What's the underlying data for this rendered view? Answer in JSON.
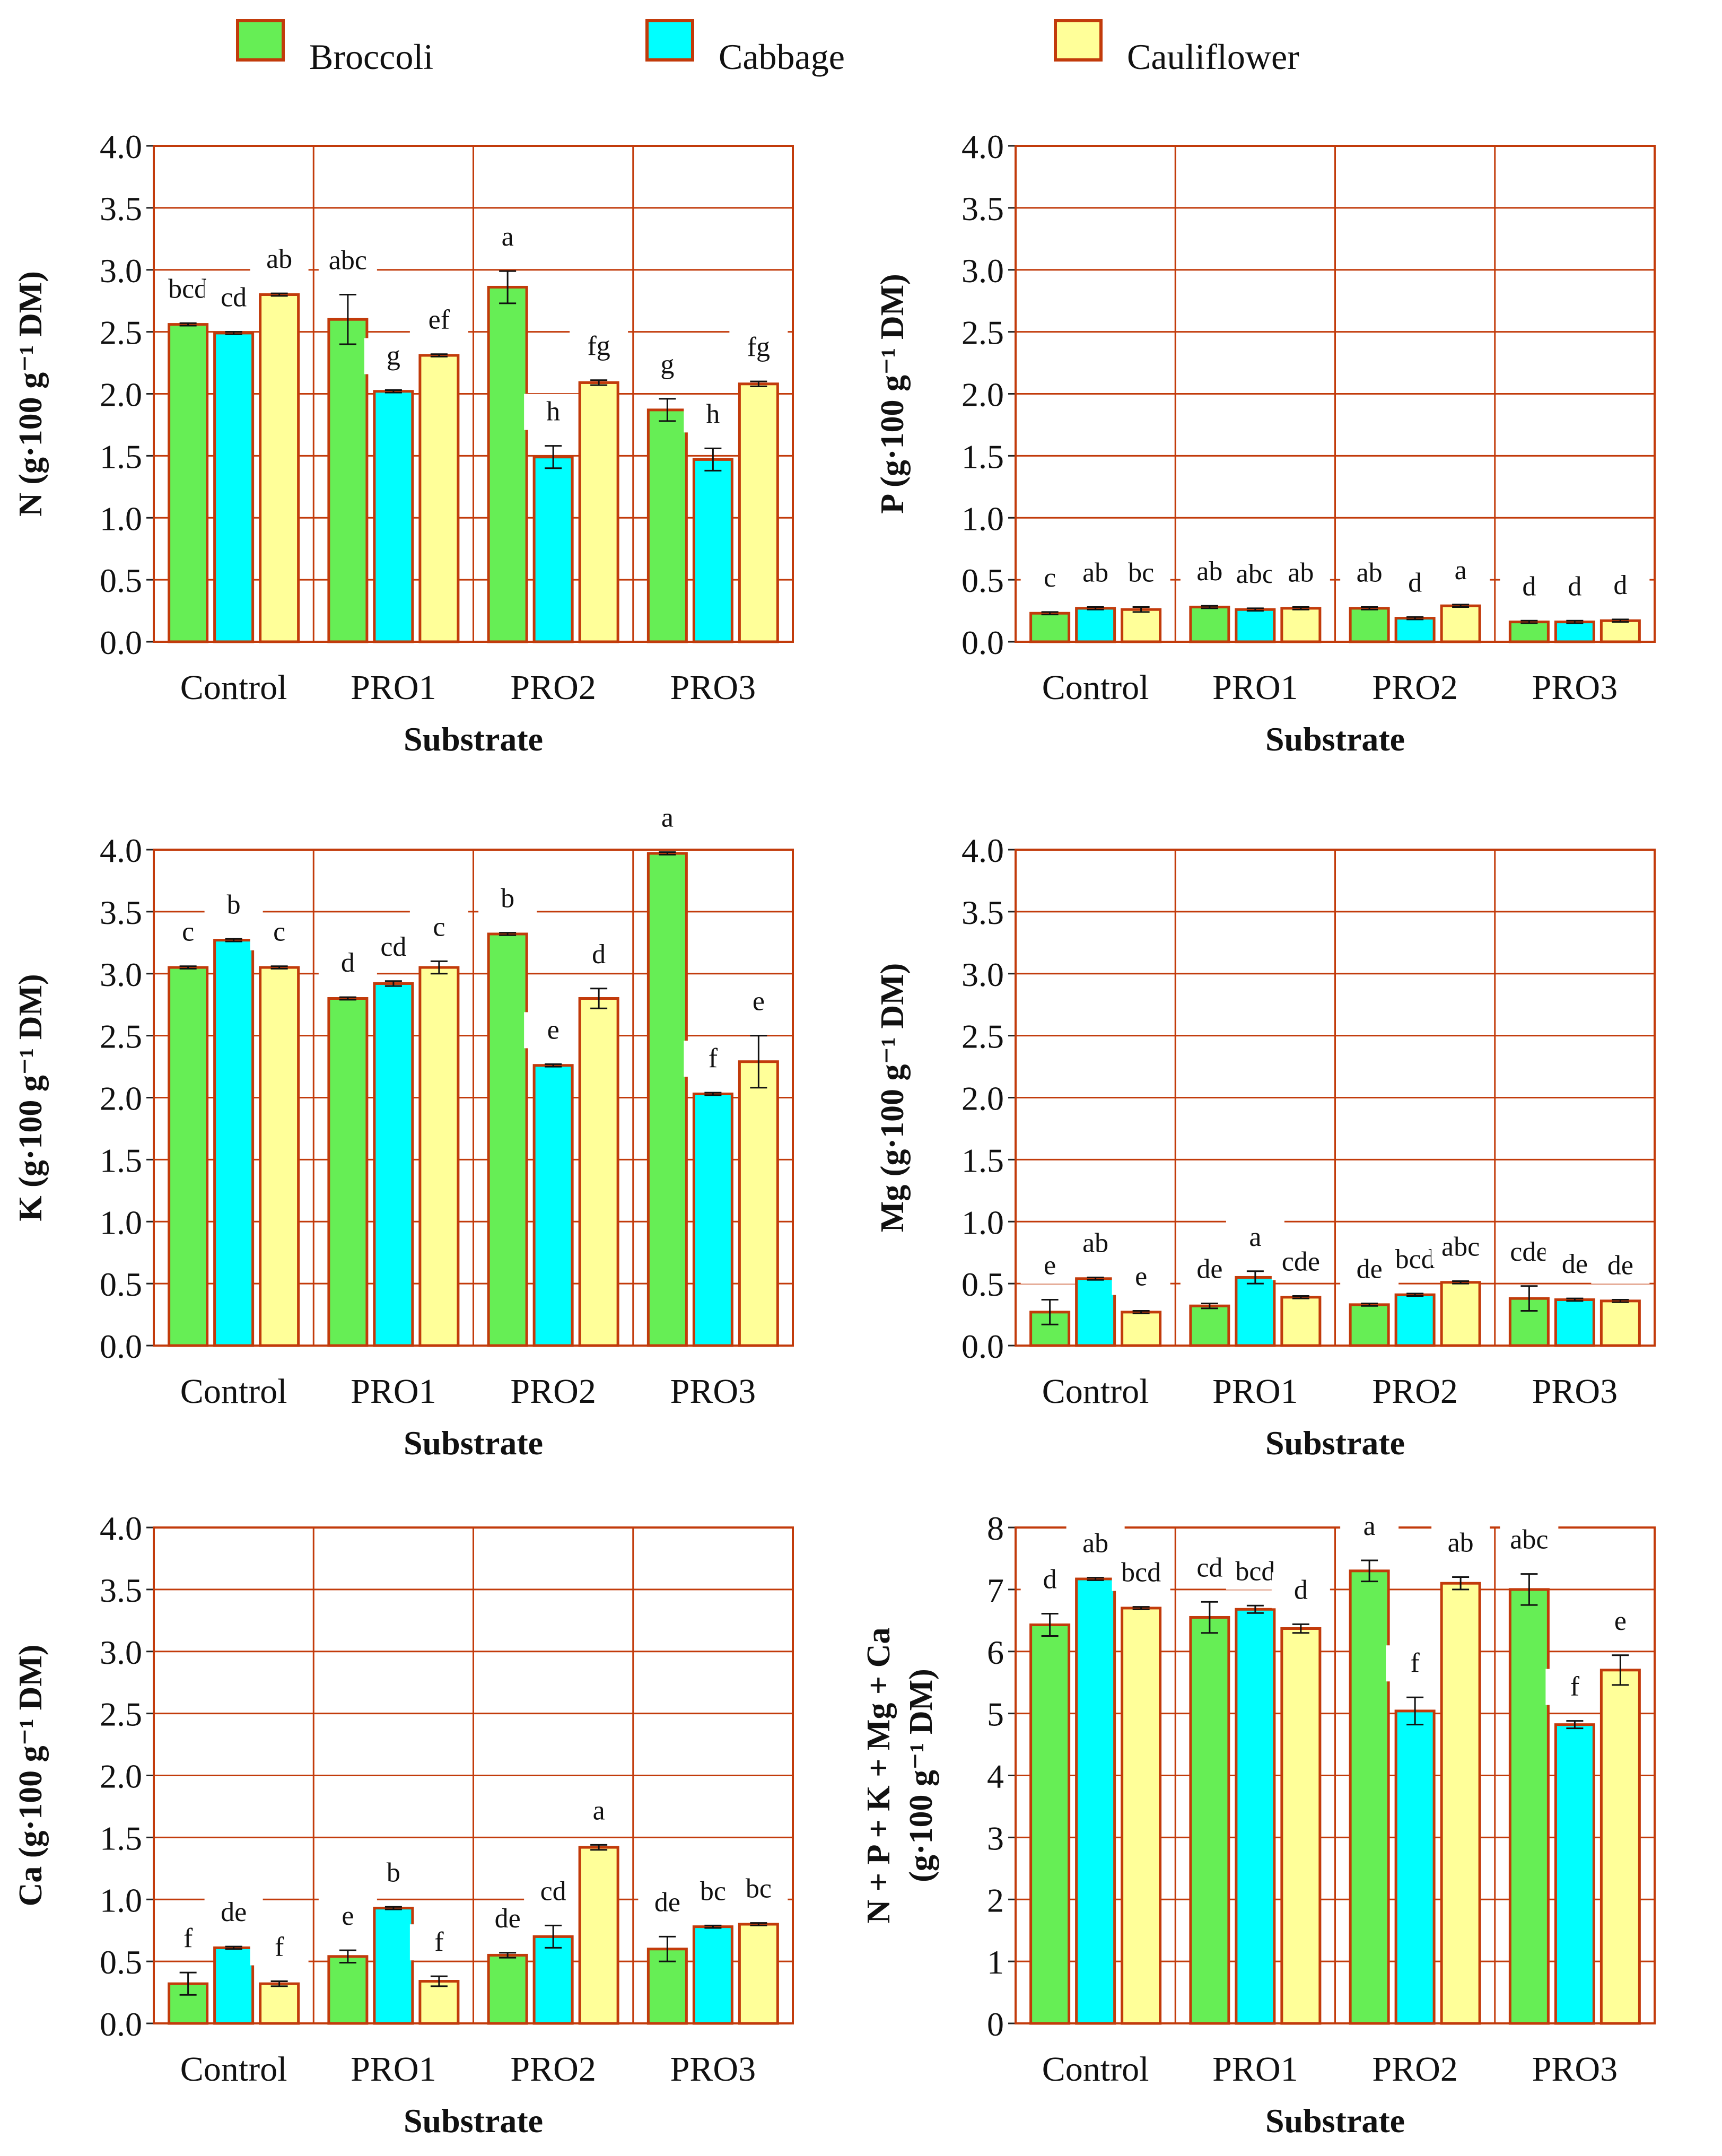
{
  "legend": [
    {
      "name": "Broccoli",
      "color": "#66ee55"
    },
    {
      "name": "Cabbage",
      "color": "#00ffff"
    },
    {
      "name": "Cauliflower",
      "color": "#ffff99"
    }
  ],
  "colors": {
    "grid": "#c23b0b",
    "bar_border": "#c23b0b",
    "text": "#111111"
  },
  "chart_data": [
    {
      "type": "bar",
      "title": "",
      "xlabel": "Substrate",
      "ylabel": "N (g·100 g⁻¹ DM)",
      "ylabel_lines": [
        "N (g·100 g⁻¹ DM)"
      ],
      "ylim": [
        0,
        4
      ],
      "yticks": [
        "0.0",
        "0.5",
        "1.0",
        "1.5",
        "2.0",
        "2.5",
        "3.0",
        "3.5",
        "4.0"
      ],
      "categories": [
        "Control",
        "PRO1",
        "PRO2",
        "PRO3"
      ],
      "series": [
        {
          "name": "Broccoli",
          "values": [
            2.56,
            2.6,
            2.86,
            1.87
          ],
          "errors": [
            0.01,
            0.2,
            0.13,
            0.09
          ],
          "letters": [
            "bcd",
            "abc",
            "a",
            "g"
          ]
        },
        {
          "name": "Cabbage",
          "values": [
            2.49,
            2.02,
            1.49,
            1.47
          ],
          "errors": [
            0.01,
            0.01,
            0.09,
            0.09
          ],
          "letters": [
            "cd",
            "g",
            "h",
            "h"
          ]
        },
        {
          "name": "Cauliflower",
          "values": [
            2.8,
            2.31,
            2.09,
            2.08
          ],
          "errors": [
            0.01,
            0.01,
            0.02,
            0.02
          ],
          "letters": [
            "ab",
            "ef",
            "fg",
            "fg"
          ]
        }
      ]
    },
    {
      "type": "bar",
      "title": "",
      "xlabel": "Substrate",
      "ylabel": "P (g·100 g⁻¹ DM)",
      "ylabel_lines": [
        "P (g·100 g⁻¹ DM)"
      ],
      "ylim": [
        0,
        4
      ],
      "yticks": [
        "0.0",
        "0.5",
        "1.0",
        "1.5",
        "2.0",
        "2.5",
        "3.0",
        "3.5",
        "4.0"
      ],
      "categories": [
        "Control",
        "PRO1",
        "PRO2",
        "PRO3"
      ],
      "series": [
        {
          "name": "Broccoli",
          "values": [
            0.23,
            0.28,
            0.27,
            0.16
          ],
          "errors": [
            0.01,
            0.01,
            0.01,
            0.01
          ],
          "letters": [
            "c",
            "ab",
            "ab",
            "d"
          ]
        },
        {
          "name": "Cabbage",
          "values": [
            0.27,
            0.26,
            0.19,
            0.16
          ],
          "errors": [
            0.01,
            0.01,
            0.01,
            0.01
          ],
          "letters": [
            "ab",
            "abc",
            "d",
            "d"
          ]
        },
        {
          "name": "Cauliflower",
          "values": [
            0.26,
            0.27,
            0.29,
            0.17
          ],
          "errors": [
            0.02,
            0.01,
            0.01,
            0.01
          ],
          "letters": [
            "bc",
            "ab",
            "a",
            "d"
          ]
        }
      ]
    },
    {
      "type": "bar",
      "title": "",
      "xlabel": "Substrate",
      "ylabel": "K (g·100 g⁻¹ DM)",
      "ylabel_lines": [
        "K (g·100 g⁻¹ DM)"
      ],
      "ylim": [
        0,
        4
      ],
      "yticks": [
        "0.0",
        "0.5",
        "1.0",
        "1.5",
        "2.0",
        "2.5",
        "3.0",
        "3.5",
        "4.0"
      ],
      "categories": [
        "Control",
        "PRO1",
        "PRO2",
        "PRO3"
      ],
      "series": [
        {
          "name": "Broccoli",
          "values": [
            3.05,
            2.8,
            3.32,
            3.97
          ],
          "errors": [
            0.01,
            0.01,
            0.01,
            0.01
          ],
          "letters": [
            "c",
            "d",
            "b",
            "a"
          ]
        },
        {
          "name": "Cabbage",
          "values": [
            3.27,
            2.92,
            2.26,
            2.03
          ],
          "errors": [
            0.01,
            0.02,
            0.01,
            0.01
          ],
          "letters": [
            "b",
            "cd",
            "e",
            "f"
          ]
        },
        {
          "name": "Cauliflower",
          "values": [
            3.05,
            3.05,
            2.8,
            2.29
          ],
          "errors": [
            0.01,
            0.05,
            0.08,
            0.21
          ],
          "letters": [
            "c",
            "c",
            "d",
            "e"
          ]
        }
      ]
    },
    {
      "type": "bar",
      "title": "",
      "xlabel": "Substrate",
      "ylabel": "Mg (g·100 g⁻¹ DM)",
      "ylabel_lines": [
        "Mg (g·100 g⁻¹ DM)"
      ],
      "ylim": [
        0,
        4
      ],
      "yticks": [
        "0.0",
        "0.5",
        "1.0",
        "1.5",
        "2.0",
        "2.5",
        "3.0",
        "3.5",
        "4.0"
      ],
      "categories": [
        "Control",
        "PRO1",
        "PRO2",
        "PRO3"
      ],
      "series": [
        {
          "name": "Broccoli",
          "values": [
            0.27,
            0.32,
            0.33,
            0.38
          ],
          "errors": [
            0.1,
            0.02,
            0.01,
            0.1
          ],
          "letters": [
            "e",
            "de",
            "de",
            "cde"
          ]
        },
        {
          "name": "Cabbage",
          "values": [
            0.54,
            0.55,
            0.41,
            0.37
          ],
          "errors": [
            0.01,
            0.05,
            0.01,
            0.01
          ],
          "letters": [
            "ab",
            "a",
            "bcd",
            "de"
          ]
        },
        {
          "name": "Cauliflower",
          "values": [
            0.27,
            0.39,
            0.51,
            0.36
          ],
          "errors": [
            0.01,
            0.01,
            0.01,
            0.01
          ],
          "letters": [
            "e",
            "cde",
            "abc",
            "de"
          ]
        }
      ]
    },
    {
      "type": "bar",
      "title": "",
      "xlabel": "Substrate",
      "ylabel": "Ca (g·100 g⁻¹ DM)",
      "ylabel_lines": [
        "Ca (g·100 g⁻¹ DM)"
      ],
      "ylim": [
        0,
        4
      ],
      "yticks": [
        "0.0",
        "0.5",
        "1.0",
        "1.5",
        "2.0",
        "2.5",
        "3.0",
        "3.5",
        "4.0"
      ],
      "categories": [
        "Control",
        "PRO1",
        "PRO2",
        "PRO3"
      ],
      "series": [
        {
          "name": "Broccoli",
          "values": [
            0.32,
            0.54,
            0.55,
            0.6
          ],
          "errors": [
            0.09,
            0.05,
            0.02,
            0.1
          ],
          "letters": [
            "f",
            "e",
            "de",
            "de"
          ]
        },
        {
          "name": "Cabbage",
          "values": [
            0.61,
            0.93,
            0.7,
            0.78
          ],
          "errors": [
            0.01,
            0.01,
            0.09,
            0.01
          ],
          "letters": [
            "de",
            "b",
            "cd",
            "bc"
          ]
        },
        {
          "name": "Cauliflower",
          "values": [
            0.32,
            0.34,
            1.42,
            0.8
          ],
          "errors": [
            0.02,
            0.04,
            0.02,
            0.01
          ],
          "letters": [
            "f",
            "f",
            "a",
            "bc"
          ]
        }
      ]
    },
    {
      "type": "bar",
      "title": "",
      "xlabel": "Substrate",
      "ylabel": "N + P + K + Mg + Ca (g·100 g⁻¹ DM)",
      "ylabel_lines": [
        "N + P + K + Mg + Ca",
        "(g·100 g⁻¹ DM)"
      ],
      "ylim": [
        0,
        8
      ],
      "yticks": [
        "0",
        "1",
        "2",
        "3",
        "4",
        "5",
        "6",
        "7",
        "8"
      ],
      "categories": [
        "Control",
        "PRO1",
        "PRO2",
        "PRO3"
      ],
      "series": [
        {
          "name": "Broccoli",
          "values": [
            6.43,
            6.55,
            7.3,
            7.0
          ],
          "errors": [
            0.18,
            0.25,
            0.17,
            0.25
          ],
          "letters": [
            "d",
            "cd",
            "a",
            "abc"
          ]
        },
        {
          "name": "Cabbage",
          "values": [
            7.17,
            6.68,
            5.04,
            4.82
          ],
          "errors": [
            0.02,
            0.06,
            0.22,
            0.06
          ],
          "letters": [
            "ab",
            "bcd",
            "f",
            "f"
          ]
        },
        {
          "name": "Cauliflower",
          "values": [
            6.7,
            6.37,
            7.1,
            5.7
          ],
          "errors": [
            0.02,
            0.07,
            0.1,
            0.24
          ],
          "letters": [
            "bcd",
            "d",
            "ab",
            "e"
          ]
        }
      ]
    }
  ]
}
